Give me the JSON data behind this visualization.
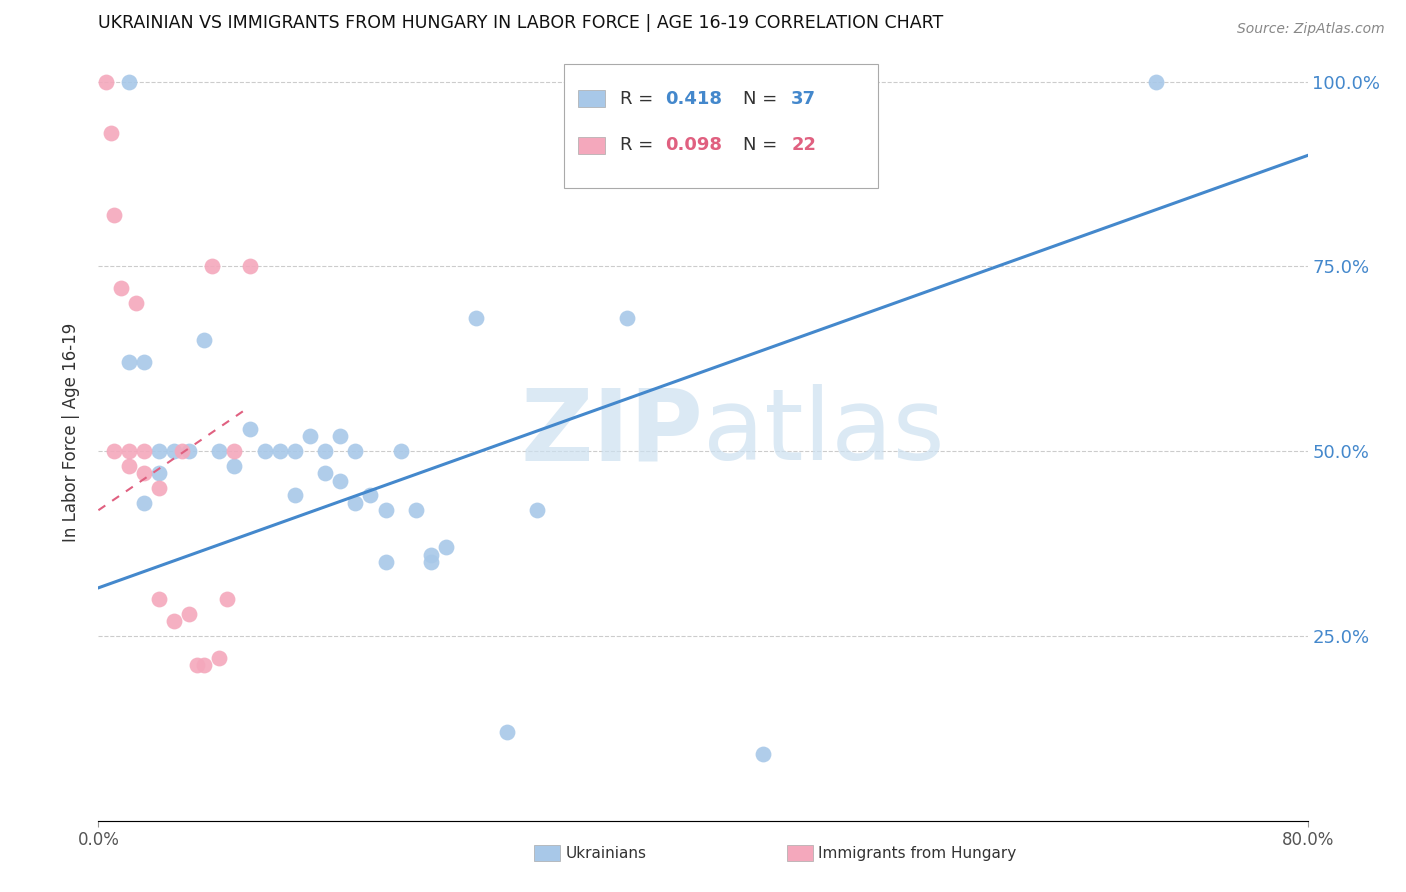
{
  "title": "UKRAINIAN VS IMMIGRANTS FROM HUNGARY IN LABOR FORCE | AGE 16-19 CORRELATION CHART",
  "source": "Source: ZipAtlas.com",
  "ylabel": "In Labor Force | Age 16-19",
  "ytick_labels": [
    "100.0%",
    "75.0%",
    "50.0%",
    "25.0%"
  ],
  "ytick_values": [
    1.0,
    0.75,
    0.5,
    0.25
  ],
  "xlim": [
    0.0,
    0.8
  ],
  "ylim": [
    0.0,
    1.05
  ],
  "blue_R": "0.418",
  "blue_N": "37",
  "pink_R": "0.098",
  "pink_N": "22",
  "blue_color": "#a8c8e8",
  "pink_color": "#f4a8bc",
  "blue_line_color": "#4488cc",
  "pink_line_color": "#e06080",
  "watermark_zip": "ZIP",
  "watermark_atlas": "atlas",
  "blue_scatter_x": [
    0.02,
    0.25,
    0.02,
    0.03,
    0.04,
    0.04,
    0.05,
    0.06,
    0.07,
    0.08,
    0.09,
    0.1,
    0.11,
    0.12,
    0.13,
    0.13,
    0.14,
    0.15,
    0.15,
    0.16,
    0.16,
    0.17,
    0.17,
    0.18,
    0.19,
    0.19,
    0.2,
    0.21,
    0.22,
    0.22,
    0.23,
    0.27,
    0.29,
    0.35,
    0.44,
    0.7,
    0.03
  ],
  "blue_scatter_y": [
    1.0,
    0.68,
    0.62,
    0.62,
    0.5,
    0.47,
    0.5,
    0.5,
    0.65,
    0.5,
    0.48,
    0.53,
    0.5,
    0.5,
    0.5,
    0.44,
    0.52,
    0.5,
    0.47,
    0.52,
    0.46,
    0.5,
    0.43,
    0.44,
    0.42,
    0.35,
    0.5,
    0.42,
    0.36,
    0.35,
    0.37,
    0.12,
    0.42,
    0.68,
    0.09,
    1.0,
    0.43
  ],
  "pink_scatter_x": [
    0.005,
    0.008,
    0.01,
    0.01,
    0.015,
    0.02,
    0.02,
    0.025,
    0.03,
    0.03,
    0.04,
    0.04,
    0.05,
    0.055,
    0.06,
    0.065,
    0.07,
    0.075,
    0.08,
    0.085,
    0.09,
    0.1
  ],
  "pink_scatter_y": [
    1.0,
    0.93,
    0.82,
    0.5,
    0.72,
    0.5,
    0.48,
    0.7,
    0.5,
    0.47,
    0.45,
    0.3,
    0.27,
    0.5,
    0.28,
    0.21,
    0.21,
    0.75,
    0.22,
    0.3,
    0.5,
    0.75
  ],
  "grid_color": "#cccccc",
  "background_color": "#ffffff",
  "blue_line_x0": 0.0,
  "blue_line_y0": 0.315,
  "blue_line_x1": 0.8,
  "blue_line_y1": 0.9,
  "pink_line_x0": 0.0,
  "pink_line_y0": 0.42,
  "pink_line_x1": 0.1,
  "pink_line_y1": 0.56
}
